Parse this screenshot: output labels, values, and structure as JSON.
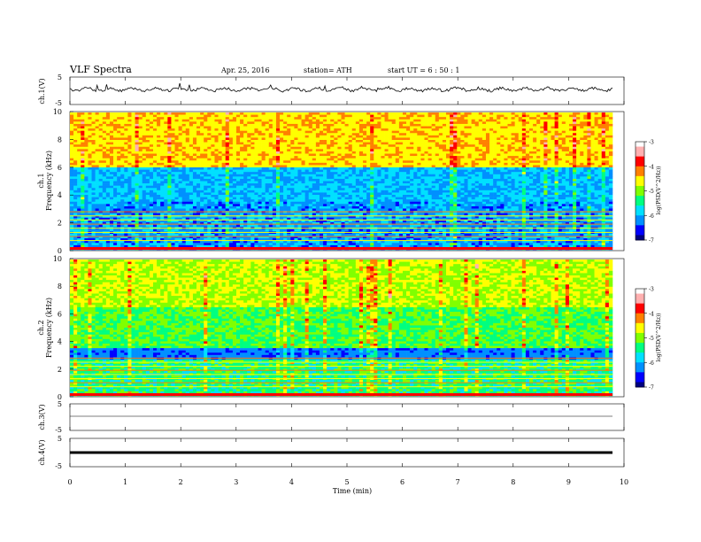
{
  "header": {
    "title": "VLF  Spectra",
    "date": "Apr. 25, 2016",
    "station": "station= ATH",
    "start": "start  UT =   6  : 50 : 1"
  },
  "colorbar": {
    "label": "log(PSD(V^2/Hz))",
    "ticks": [
      "-3",
      "-4",
      "-5",
      "-6",
      "-7"
    ],
    "colors": [
      "#000080",
      "#0000ff",
      "#0090ff",
      "#00e0ff",
      "#00ff80",
      "#80ff00",
      "#ffff00",
      "#ff8000",
      "#ff0000",
      "#ffb0b0",
      "#ffffff"
    ]
  },
  "chart_data": [
    {
      "type": "line",
      "panel": "ch1-waveform",
      "ylabel": "ch.1(V)",
      "yticks": [
        "5",
        "-5"
      ],
      "ylim": [
        -5,
        5
      ],
      "description_values": "continuous waveform hovering near 0 V with small spikes",
      "x": [
        0,
        9.8
      ],
      "values_approx": [
        0,
        0
      ]
    },
    {
      "type": "heatmap",
      "panel": "ch1-spectrogram",
      "ylabel": "ch.1\nFrequency  (kHz)",
      "ylabel_top": "ch.1",
      "ylabel_bottom": "Frequency  (kHz)",
      "yticks": [
        "10",
        "8",
        "6",
        "4",
        "2",
        "0"
      ],
      "ylim": [
        0,
        10
      ],
      "xlim": [
        0,
        9.8
      ],
      "zlim": [
        -7,
        -3
      ]
    },
    {
      "type": "heatmap",
      "panel": "ch2-spectrogram",
      "ylabel_top": "ch.2",
      "ylabel_bottom": "Frequency  (kHz)",
      "yticks": [
        "10",
        "8",
        "6",
        "4",
        "2",
        "0"
      ],
      "ylim": [
        0,
        10
      ],
      "xlim": [
        0,
        9.8
      ],
      "zlim": [
        -7,
        -3
      ]
    },
    {
      "type": "line",
      "panel": "ch3-waveform",
      "ylabel": "ch.3(V)",
      "yticks": [
        "5",
        "-5"
      ],
      "ylim": [
        -5,
        5
      ],
      "x": [
        0,
        9.8
      ],
      "values": [
        0,
        0
      ]
    },
    {
      "type": "line",
      "panel": "ch4-waveform",
      "ylabel": "ch.4(V)",
      "yticks": [
        "5",
        "-5"
      ],
      "ylim": [
        -5,
        5
      ],
      "x": [
        0,
        9.8
      ],
      "values": [
        0,
        0
      ]
    }
  ],
  "xaxis": {
    "label": "Time  (min)",
    "ticks": [
      "0",
      "1",
      "2",
      "3",
      "4",
      "5",
      "6",
      "7",
      "8",
      "9",
      "10"
    ],
    "xlim": [
      0,
      10
    ]
  }
}
